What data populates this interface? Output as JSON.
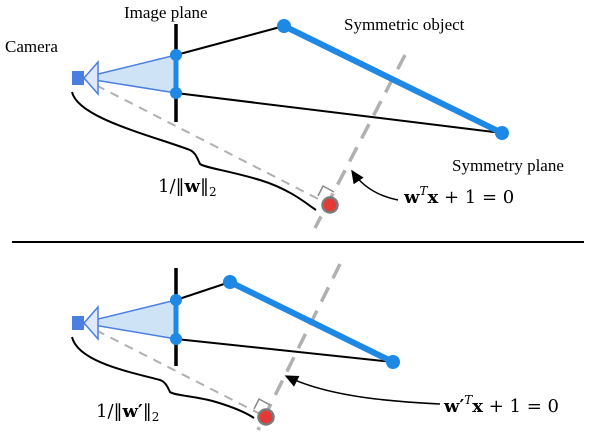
{
  "labels": {
    "camera": "Camera",
    "image_plane": "Image plane",
    "symmetric_object": "Symmetric object",
    "symmetry_plane": "Symmetry plane"
  },
  "top": {
    "distance": {
      "lead": "1/‖",
      "vec": "w",
      "tail": "‖",
      "sub": "2"
    },
    "equation": {
      "w": "w",
      "sup": "T",
      "x": "x",
      "rest": " + 1 = 0"
    }
  },
  "bottom": {
    "distance": {
      "lead": "1/‖",
      "vec": "w′",
      "tail": "‖",
      "sub": "2"
    },
    "equation": {
      "w": "w′",
      "sup": "T",
      "x": "x",
      "rest": " + 1 = 0"
    }
  },
  "colors": {
    "object_blue": "#1e88e5",
    "frustum_fill": "#cfe3f7",
    "camera_body": "#4a7fe0",
    "guide_gray": "#b0b0b0",
    "foot_red": "#e53935",
    "divider": "#000000"
  }
}
